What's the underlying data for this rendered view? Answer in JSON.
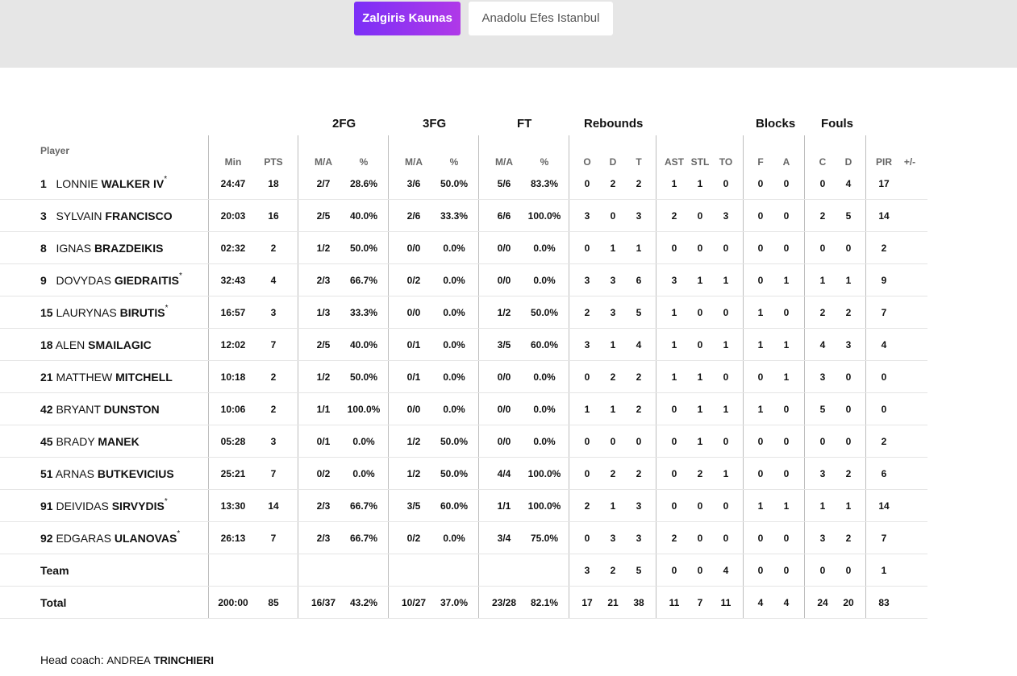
{
  "tabs": [
    {
      "label": "Zalgiris Kaunas",
      "active": true
    },
    {
      "label": "Anadolu Efes Istanbul",
      "active": false
    }
  ],
  "accent_gradient": [
    "#7b2ff7",
    "#b039e8"
  ],
  "table": {
    "player_header": "Player",
    "groups": {
      "fg2": "2FG",
      "fg3": "3FG",
      "ft": "FT",
      "rebounds": "Rebounds",
      "blocks": "Blocks",
      "fouls": "Fouls"
    },
    "columns": {
      "min": "Min",
      "pts": "PTS",
      "fg2_ma": "M/A",
      "fg2_pct": "%",
      "fg3_ma": "M/A",
      "fg3_pct": "%",
      "ft_ma": "M/A",
      "ft_pct": "%",
      "reb_o": "O",
      "reb_d": "D",
      "reb_t": "T",
      "ast": "AST",
      "stl": "STL",
      "to": "TO",
      "blk_f": "F",
      "blk_a": "A",
      "foul_c": "C",
      "foul_d": "D",
      "pir": "PIR",
      "pm": "+/-"
    },
    "players": [
      {
        "num": "1",
        "first": "LONNIE",
        "last": "WALKER IV",
        "starter": true,
        "min": "24:47",
        "pts": "18",
        "fg2_ma": "2/7",
        "fg2_pct": "28.6%",
        "fg3_ma": "3/6",
        "fg3_pct": "50.0%",
        "ft_ma": "5/6",
        "ft_pct": "83.3%",
        "reb_o": "0",
        "reb_d": "2",
        "reb_t": "2",
        "ast": "1",
        "stl": "1",
        "to": "0",
        "blk_f": "0",
        "blk_a": "0",
        "foul_c": "0",
        "foul_d": "4",
        "pir": "17",
        "pm": ""
      },
      {
        "num": "3",
        "first": "SYLVAIN",
        "last": "FRANCISCO",
        "starter": false,
        "min": "20:03",
        "pts": "16",
        "fg2_ma": "2/5",
        "fg2_pct": "40.0%",
        "fg3_ma": "2/6",
        "fg3_pct": "33.3%",
        "ft_ma": "6/6",
        "ft_pct": "100.0%",
        "reb_o": "3",
        "reb_d": "0",
        "reb_t": "3",
        "ast": "2",
        "stl": "0",
        "to": "3",
        "blk_f": "0",
        "blk_a": "0",
        "foul_c": "2",
        "foul_d": "5",
        "pir": "14",
        "pm": ""
      },
      {
        "num": "8",
        "first": "IGNAS",
        "last": "BRAZDEIKIS",
        "starter": false,
        "min": "02:32",
        "pts": "2",
        "fg2_ma": "1/2",
        "fg2_pct": "50.0%",
        "fg3_ma": "0/0",
        "fg3_pct": "0.0%",
        "ft_ma": "0/0",
        "ft_pct": "0.0%",
        "reb_o": "0",
        "reb_d": "1",
        "reb_t": "1",
        "ast": "0",
        "stl": "0",
        "to": "0",
        "blk_f": "0",
        "blk_a": "0",
        "foul_c": "0",
        "foul_d": "0",
        "pir": "2",
        "pm": ""
      },
      {
        "num": "9",
        "first": "DOVYDAS",
        "last": "GIEDRAITIS",
        "starter": true,
        "min": "32:43",
        "pts": "4",
        "fg2_ma": "2/3",
        "fg2_pct": "66.7%",
        "fg3_ma": "0/2",
        "fg3_pct": "0.0%",
        "ft_ma": "0/0",
        "ft_pct": "0.0%",
        "reb_o": "3",
        "reb_d": "3",
        "reb_t": "6",
        "ast": "3",
        "stl": "1",
        "to": "1",
        "blk_f": "0",
        "blk_a": "1",
        "foul_c": "1",
        "foul_d": "1",
        "pir": "9",
        "pm": ""
      },
      {
        "num": "15",
        "first": "LAURYNAS",
        "last": "BIRUTIS",
        "starter": true,
        "min": "16:57",
        "pts": "3",
        "fg2_ma": "1/3",
        "fg2_pct": "33.3%",
        "fg3_ma": "0/0",
        "fg3_pct": "0.0%",
        "ft_ma": "1/2",
        "ft_pct": "50.0%",
        "reb_o": "2",
        "reb_d": "3",
        "reb_t": "5",
        "ast": "1",
        "stl": "0",
        "to": "0",
        "blk_f": "1",
        "blk_a": "0",
        "foul_c": "2",
        "foul_d": "2",
        "pir": "7",
        "pm": ""
      },
      {
        "num": "18",
        "first": "ALEN",
        "last": "SMAILAGIC",
        "starter": false,
        "min": "12:02",
        "pts": "7",
        "fg2_ma": "2/5",
        "fg2_pct": "40.0%",
        "fg3_ma": "0/1",
        "fg3_pct": "0.0%",
        "ft_ma": "3/5",
        "ft_pct": "60.0%",
        "reb_o": "3",
        "reb_d": "1",
        "reb_t": "4",
        "ast": "1",
        "stl": "0",
        "to": "1",
        "blk_f": "1",
        "blk_a": "1",
        "foul_c": "4",
        "foul_d": "3",
        "pir": "4",
        "pm": ""
      },
      {
        "num": "21",
        "first": "MATTHEW",
        "last": "MITCHELL",
        "starter": false,
        "min": "10:18",
        "pts": "2",
        "fg2_ma": "1/2",
        "fg2_pct": "50.0%",
        "fg3_ma": "0/1",
        "fg3_pct": "0.0%",
        "ft_ma": "0/0",
        "ft_pct": "0.0%",
        "reb_o": "0",
        "reb_d": "2",
        "reb_t": "2",
        "ast": "1",
        "stl": "1",
        "to": "0",
        "blk_f": "0",
        "blk_a": "1",
        "foul_c": "3",
        "foul_d": "0",
        "pir": "0",
        "pm": ""
      },
      {
        "num": "42",
        "first": "BRYANT",
        "last": "DUNSTON",
        "starter": false,
        "min": "10:06",
        "pts": "2",
        "fg2_ma": "1/1",
        "fg2_pct": "100.0%",
        "fg3_ma": "0/0",
        "fg3_pct": "0.0%",
        "ft_ma": "0/0",
        "ft_pct": "0.0%",
        "reb_o": "1",
        "reb_d": "1",
        "reb_t": "2",
        "ast": "0",
        "stl": "1",
        "to": "1",
        "blk_f": "1",
        "blk_a": "0",
        "foul_c": "5",
        "foul_d": "0",
        "pir": "0",
        "pm": ""
      },
      {
        "num": "45",
        "first": "BRADY",
        "last": "MANEK",
        "starter": false,
        "min": "05:28",
        "pts": "3",
        "fg2_ma": "0/1",
        "fg2_pct": "0.0%",
        "fg3_ma": "1/2",
        "fg3_pct": "50.0%",
        "ft_ma": "0/0",
        "ft_pct": "0.0%",
        "reb_o": "0",
        "reb_d": "0",
        "reb_t": "0",
        "ast": "0",
        "stl": "1",
        "to": "0",
        "blk_f": "0",
        "blk_a": "0",
        "foul_c": "0",
        "foul_d": "0",
        "pir": "2",
        "pm": ""
      },
      {
        "num": "51",
        "first": "ARNAS",
        "last": "BUTKEVICIUS",
        "starter": false,
        "min": "25:21",
        "pts": "7",
        "fg2_ma": "0/2",
        "fg2_pct": "0.0%",
        "fg3_ma": "1/2",
        "fg3_pct": "50.0%",
        "ft_ma": "4/4",
        "ft_pct": "100.0%",
        "reb_o": "0",
        "reb_d": "2",
        "reb_t": "2",
        "ast": "0",
        "stl": "2",
        "to": "1",
        "blk_f": "0",
        "blk_a": "0",
        "foul_c": "3",
        "foul_d": "2",
        "pir": "6",
        "pm": ""
      },
      {
        "num": "91",
        "first": "DEIVIDAS",
        "last": "SIRVYDIS",
        "starter": true,
        "min": "13:30",
        "pts": "14",
        "fg2_ma": "2/3",
        "fg2_pct": "66.7%",
        "fg3_ma": "3/5",
        "fg3_pct": "60.0%",
        "ft_ma": "1/1",
        "ft_pct": "100.0%",
        "reb_o": "2",
        "reb_d": "1",
        "reb_t": "3",
        "ast": "0",
        "stl": "0",
        "to": "0",
        "blk_f": "1",
        "blk_a": "1",
        "foul_c": "1",
        "foul_d": "1",
        "pir": "14",
        "pm": ""
      },
      {
        "num": "92",
        "first": "EDGARAS",
        "last": "ULANOVAS",
        "starter": true,
        "min": "26:13",
        "pts": "7",
        "fg2_ma": "2/3",
        "fg2_pct": "66.7%",
        "fg3_ma": "0/2",
        "fg3_pct": "0.0%",
        "ft_ma": "3/4",
        "ft_pct": "75.0%",
        "reb_o": "0",
        "reb_d": "3",
        "reb_t": "3",
        "ast": "2",
        "stl": "0",
        "to": "0",
        "blk_f": "0",
        "blk_a": "0",
        "foul_c": "3",
        "foul_d": "2",
        "pir": "7",
        "pm": ""
      }
    ],
    "team_row": {
      "label": "Team",
      "min": "",
      "pts": "",
      "fg2_ma": "",
      "fg2_pct": "",
      "fg3_ma": "",
      "fg3_pct": "",
      "ft_ma": "",
      "ft_pct": "",
      "reb_o": "3",
      "reb_d": "2",
      "reb_t": "5",
      "ast": "0",
      "stl": "0",
      "to": "4",
      "blk_f": "0",
      "blk_a": "0",
      "foul_c": "0",
      "foul_d": "0",
      "pir": "1",
      "pm": ""
    },
    "total_row": {
      "label": "Total",
      "min": "200:00",
      "pts": "85",
      "fg2_ma": "16/37",
      "fg2_pct": "43.2%",
      "fg3_ma": "10/27",
      "fg3_pct": "37.0%",
      "ft_ma": "23/28",
      "ft_pct": "82.1%",
      "reb_o": "17",
      "reb_d": "21",
      "reb_t": "38",
      "ast": "11",
      "stl": "7",
      "to": "11",
      "blk_f": "4",
      "blk_a": "4",
      "foul_c": "24",
      "foul_d": "20",
      "pir": "83",
      "pm": ""
    }
  },
  "coach": {
    "label": "Head coach:",
    "first": "ANDREA",
    "last": "TRINCHIERI"
  }
}
